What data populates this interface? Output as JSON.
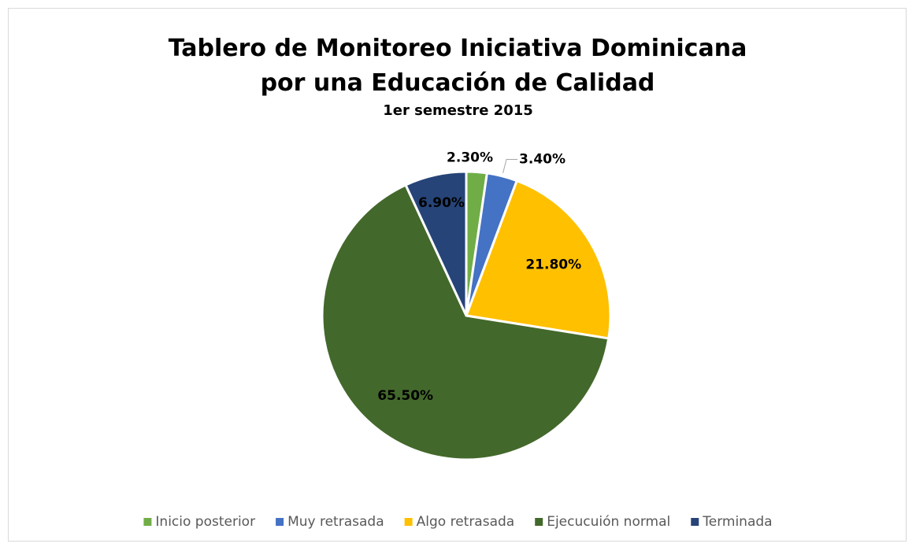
{
  "chart_data": {
    "type": "pie",
    "title": "Tablero de Monitoreo Iniciativa Dominicana por una Educación de Calidad",
    "subtitle": "1er semestre 2015",
    "categories": [
      "Inicio posterior",
      "Muy retrasada",
      "Algo retrasada",
      "Ejecucuión normal",
      "Terminada"
    ],
    "values": [
      2.3,
      3.4,
      21.8,
      65.5,
      6.9
    ],
    "value_labels": [
      "2.30%",
      "3.40%",
      "21.80%",
      "65.50%",
      "6.90%"
    ],
    "colors": [
      "#70ad47",
      "#4472c4",
      "#ffc000",
      "#43682b",
      "#264478"
    ],
    "legend": "bottom"
  }
}
